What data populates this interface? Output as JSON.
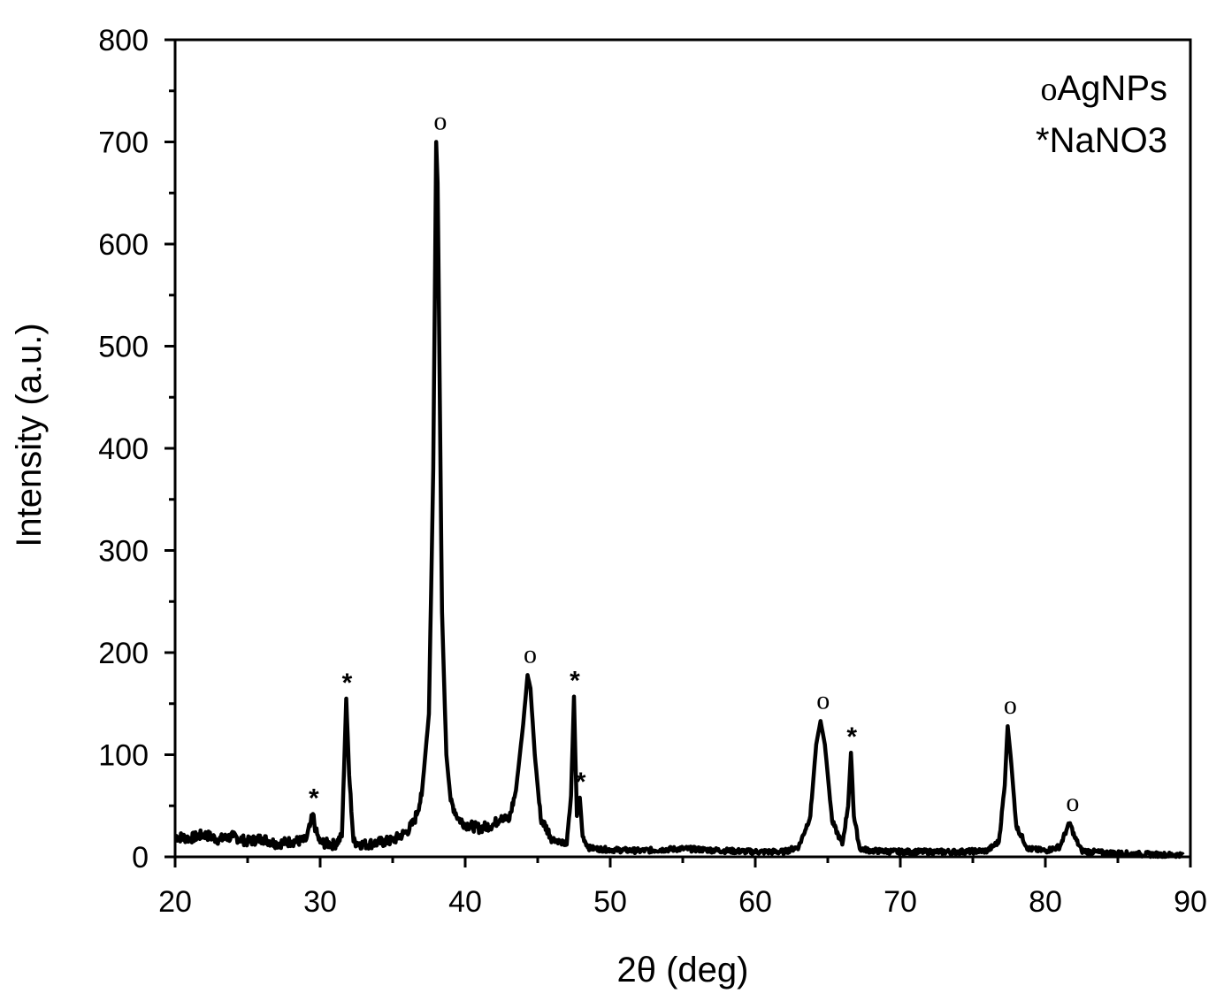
{
  "chart_data": {
    "type": "line",
    "title": "",
    "xlabel": "2θ (deg)",
    "ylabel": "Intensity (a.u.)",
    "xlim": [
      20,
      90
    ],
    "ylim": [
      0,
      800
    ],
    "xticks": [
      20,
      30,
      40,
      50,
      60,
      70,
      80,
      90
    ],
    "yticks": [
      0,
      100,
      200,
      300,
      400,
      500,
      600,
      700,
      800
    ],
    "grid": false,
    "legend": {
      "placement": "top-right",
      "entries": [
        {
          "symbol": "o",
          "label": "AgNPs"
        },
        {
          "symbol": "*",
          "label": "NaNO3"
        }
      ]
    },
    "series": [
      {
        "color": "#000000",
        "x": [
          20,
          21,
          22,
          23,
          24,
          25,
          26,
          27,
          28,
          29,
          29.3,
          29.5,
          29.7,
          30,
          31,
          31.5,
          31.8,
          32,
          32.3,
          33,
          34,
          35,
          36,
          36.5,
          37,
          37.5,
          37.8,
          38.0,
          38.1,
          38.2,
          38.4,
          38.7,
          39,
          39.5,
          40,
          41,
          42,
          42.5,
          43,
          43.5,
          44,
          44.3,
          44.5,
          44.8,
          45.2,
          46,
          47,
          47.3,
          47.5,
          47.7,
          47.9,
          48.1,
          48.5,
          49,
          50,
          52,
          55,
          58,
          60,
          62,
          63,
          63.8,
          64.2,
          64.5,
          64.8,
          65.3,
          66,
          66.4,
          66.6,
          66.8,
          67.2,
          68,
          70,
          72,
          74,
          76,
          76.8,
          77.2,
          77.4,
          77.6,
          78,
          78.8,
          80,
          81,
          81.5,
          81.7,
          82,
          82.5,
          84,
          86,
          88,
          89.5
        ],
        "y": [
          20,
          18,
          22,
          17,
          20,
          15,
          18,
          13,
          15,
          16,
          30,
          42,
          25,
          14,
          12,
          20,
          155,
          80,
          15,
          12,
          14,
          16,
          25,
          35,
          60,
          140,
          380,
          700,
          660,
          520,
          240,
          100,
          55,
          38,
          32,
          28,
          32,
          40,
          35,
          65,
          130,
          178,
          165,
          100,
          38,
          18,
          12,
          60,
          157,
          40,
          58,
          20,
          9,
          8,
          7,
          6,
          8,
          6,
          5,
          5,
          10,
          40,
          110,
          133,
          110,
          35,
          12,
          50,
          102,
          40,
          8,
          6,
          5,
          5,
          5,
          6,
          15,
          70,
          128,
          100,
          30,
          8,
          6,
          10,
          28,
          33,
          20,
          6,
          4,
          3,
          2,
          2
        ]
      }
    ],
    "annotations": [
      {
        "x": 29.5,
        "y": 42,
        "text": "*"
      },
      {
        "x": 31.8,
        "y": 155,
        "text": "*"
      },
      {
        "x": 38.1,
        "y": 700,
        "text": "o"
      },
      {
        "x": 44.3,
        "y": 178,
        "text": "o"
      },
      {
        "x": 47.5,
        "y": 157,
        "text": "*"
      },
      {
        "x": 47.9,
        "y": 58,
        "text": "*"
      },
      {
        "x": 64.5,
        "y": 133,
        "text": "o"
      },
      {
        "x": 66.6,
        "y": 102,
        "text": "*"
      },
      {
        "x": 77.4,
        "y": 128,
        "text": "o"
      },
      {
        "x": 81.7,
        "y": 33,
        "text": "o"
      }
    ]
  }
}
